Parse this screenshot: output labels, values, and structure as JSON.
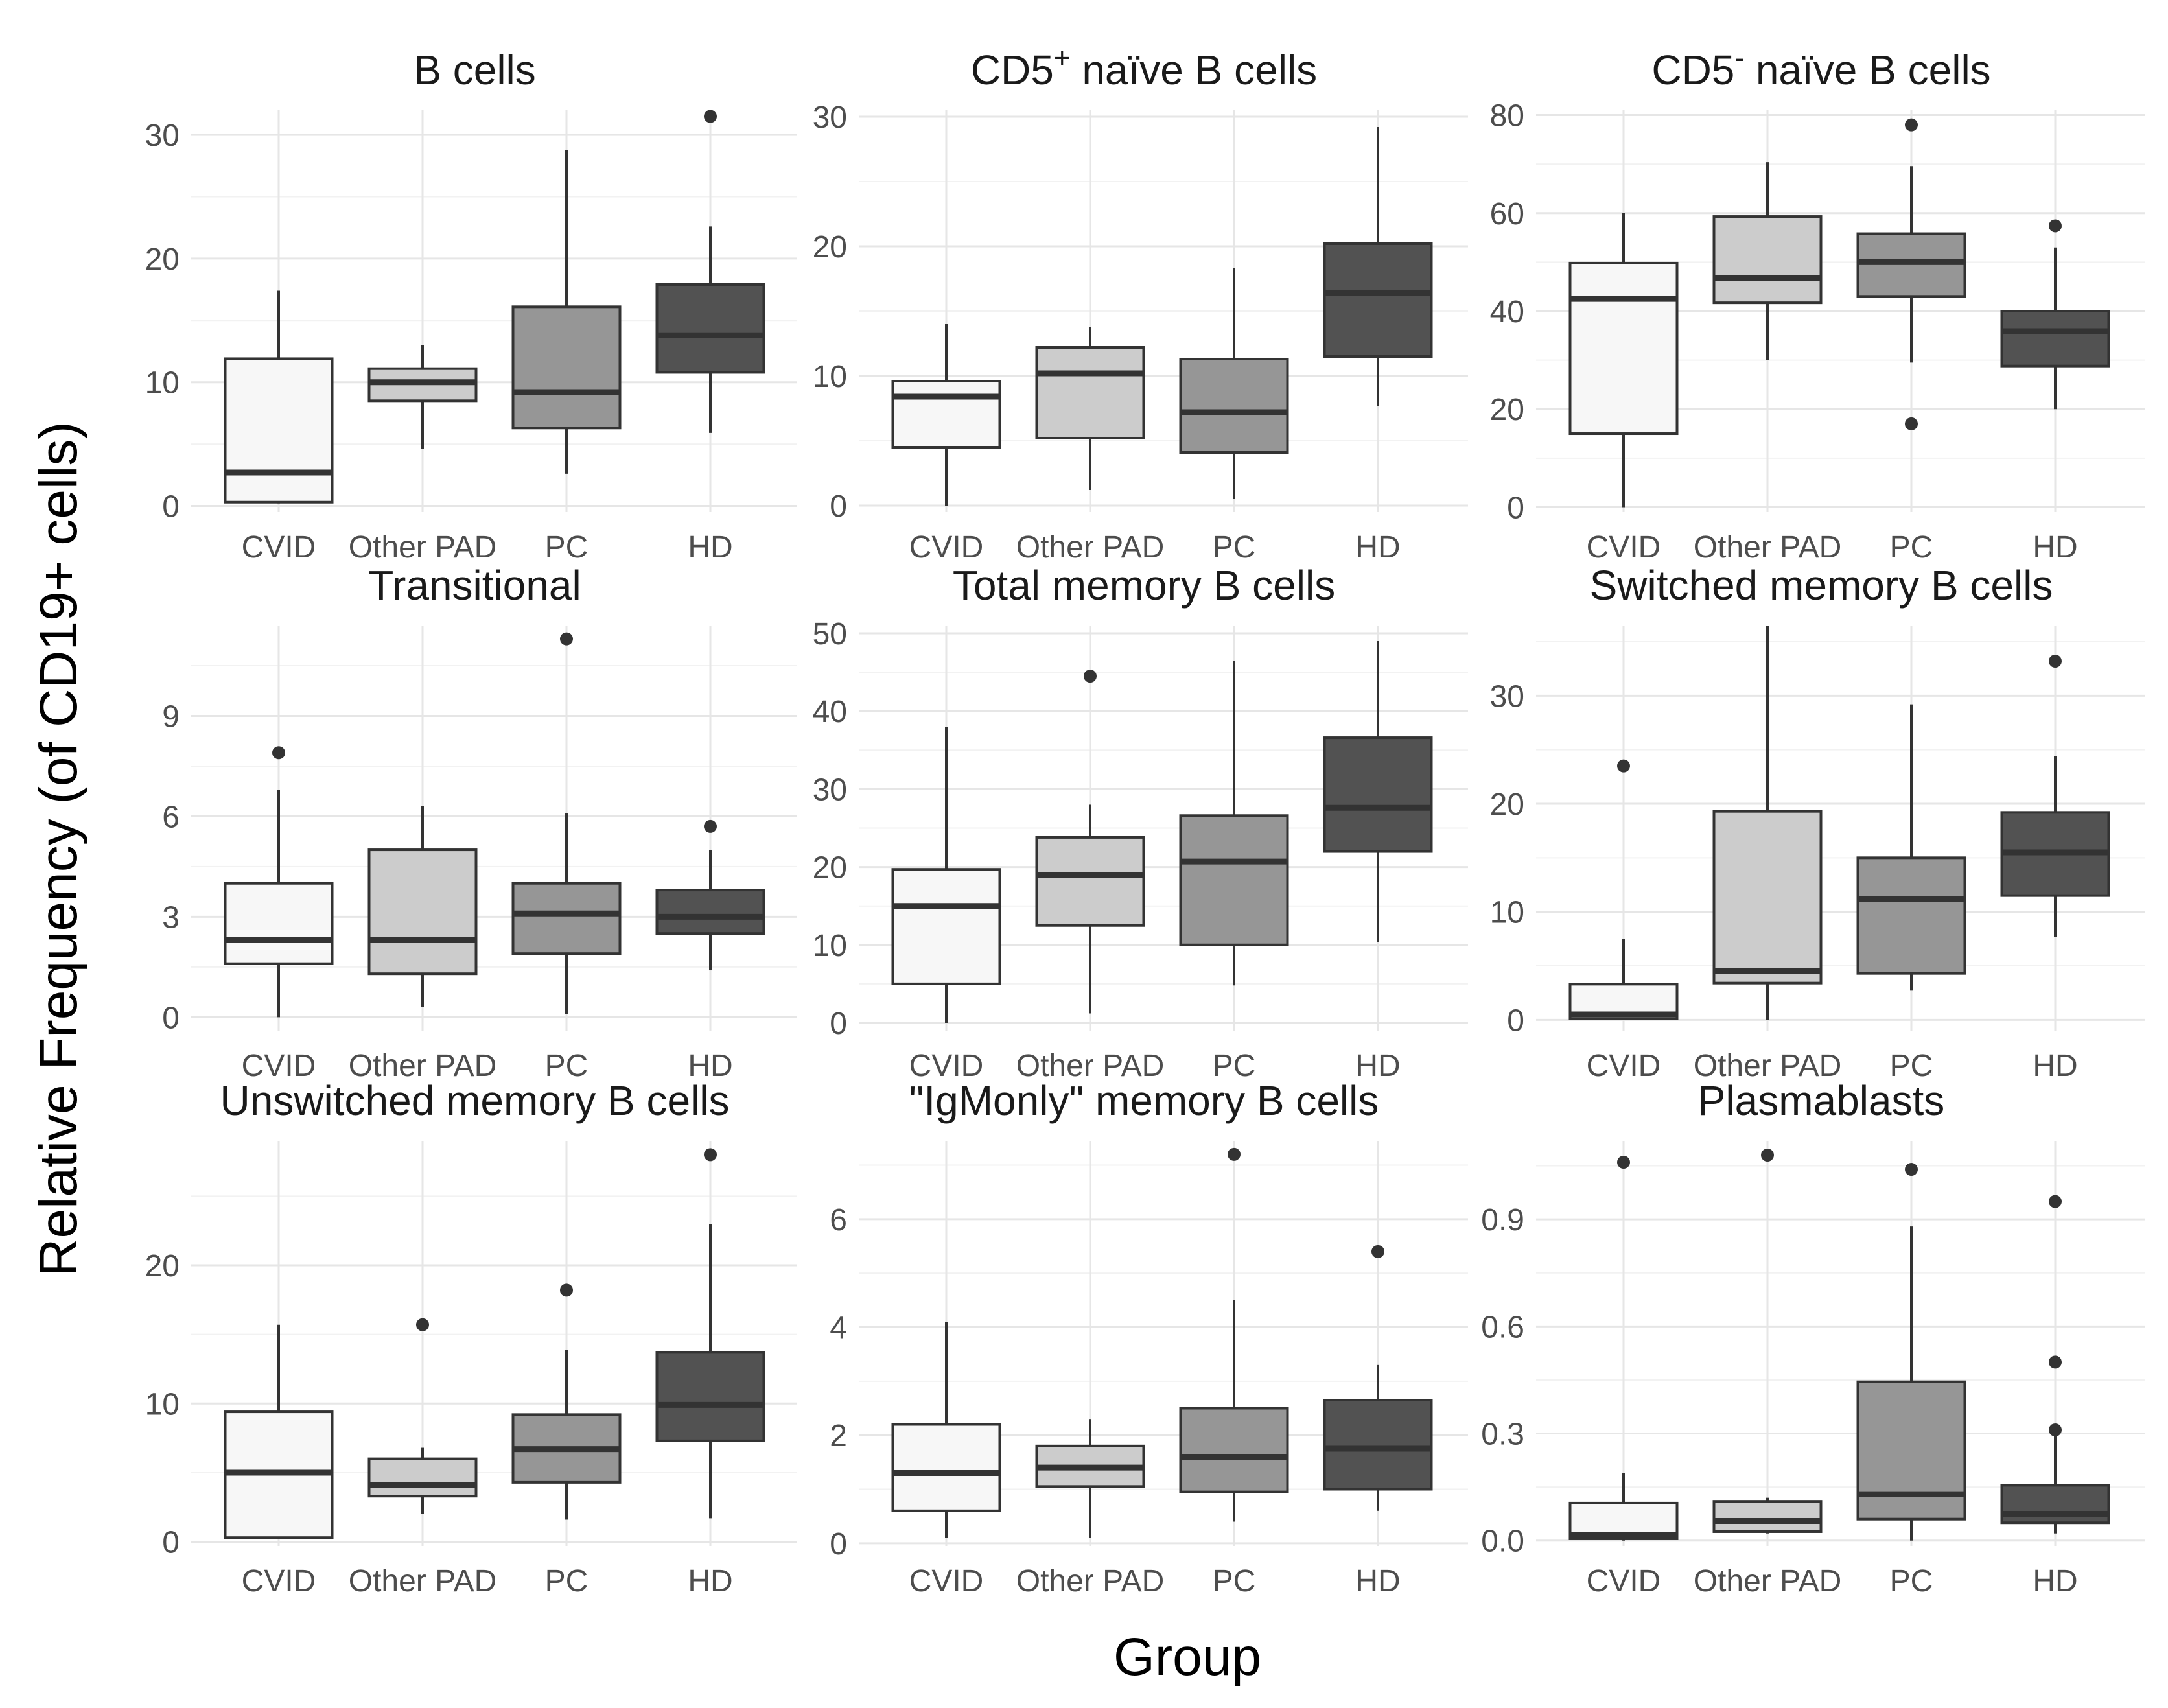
{
  "axis_titles": {
    "y": "Relative Frequency (of CD19+ cells)",
    "x": "Group"
  },
  "chart_data": {
    "type": "boxplot",
    "categories": [
      "CVID",
      "Other PAD",
      "PC",
      "HD"
    ],
    "fill_colors": [
      "#f7f7f7",
      "#cccccc",
      "#969696",
      "#525252"
    ],
    "panels": [
      {
        "title": "B cells",
        "ylim": [
          -0.5,
          32
        ],
        "yticks": [
          0,
          10,
          20,
          30
        ],
        "tick_labels": [
          "0",
          "10",
          "20",
          "30"
        ],
        "boxes": [
          {
            "min": 0.2,
            "q1": 0.3,
            "median": 2.7,
            "q3": 11.9,
            "max": 17.4,
            "outliers": []
          },
          {
            "min": 4.6,
            "q1": 8.5,
            "median": 10.0,
            "q3": 11.1,
            "max": 13.0,
            "outliers": []
          },
          {
            "min": 2.6,
            "q1": 6.3,
            "median": 9.2,
            "q3": 16.1,
            "max": 28.8,
            "outliers": []
          },
          {
            "min": 5.9,
            "q1": 10.8,
            "median": 13.8,
            "q3": 17.9,
            "max": 22.6,
            "outliers": [
              31.5
            ]
          }
        ]
      },
      {
        "title": "CD5+ naïve B cells",
        "title_parts": {
          "main": "CD5",
          "sup": "+",
          "rest": " naïve B cells"
        },
        "ylim": [
          -0.5,
          30.5
        ],
        "yticks": [
          0,
          10,
          20,
          30
        ],
        "tick_labels": [
          "0",
          "10",
          "20",
          "30"
        ],
        "boxes": [
          {
            "min": 0.0,
            "q1": 4.5,
            "median": 8.4,
            "q3": 9.6,
            "max": 14.0,
            "outliers": []
          },
          {
            "min": 1.2,
            "q1": 5.2,
            "median": 10.2,
            "q3": 12.2,
            "max": 13.8,
            "outliers": []
          },
          {
            "min": 0.5,
            "q1": 4.1,
            "median": 7.2,
            "q3": 11.3,
            "max": 18.3,
            "outliers": []
          },
          {
            "min": 7.7,
            "q1": 11.5,
            "median": 16.4,
            "q3": 20.2,
            "max": 29.2,
            "outliers": []
          }
        ]
      },
      {
        "title": "CD5- naïve B cells",
        "title_parts": {
          "main": "CD5",
          "sup": "-",
          "rest": " naïve B cells"
        },
        "ylim": [
          -1,
          81
        ],
        "yticks": [
          0,
          20,
          40,
          60,
          80
        ],
        "tick_labels": [
          "0",
          "20",
          "40",
          "60",
          "80"
        ],
        "boxes": [
          {
            "min": 0.0,
            "q1": 15.0,
            "median": 42.5,
            "q3": 49.8,
            "max": 60.0,
            "outliers": []
          },
          {
            "min": 30.0,
            "q1": 41.7,
            "median": 46.7,
            "q3": 59.3,
            "max": 70.4,
            "outliers": []
          },
          {
            "min": 29.5,
            "q1": 43.0,
            "median": 50.0,
            "q3": 55.8,
            "max": 69.6,
            "outliers": [
              78.0,
              17.0
            ]
          },
          {
            "min": 20.0,
            "q1": 28.8,
            "median": 35.9,
            "q3": 40.0,
            "max": 53.0,
            "outliers": [
              57.4
            ]
          }
        ]
      },
      {
        "title": "Transitional",
        "ylim": [
          -0.4,
          11.7
        ],
        "yticks": [
          0,
          3,
          6,
          9
        ],
        "tick_labels": [
          "0",
          "3",
          "6",
          "9"
        ],
        "boxes": [
          {
            "min": 0.0,
            "q1": 1.6,
            "median": 2.3,
            "q3": 4.0,
            "max": 6.8,
            "outliers": [
              7.9
            ]
          },
          {
            "min": 0.3,
            "q1": 1.3,
            "median": 2.3,
            "q3": 5.0,
            "max": 6.3,
            "outliers": []
          },
          {
            "min": 0.1,
            "q1": 1.9,
            "median": 3.1,
            "q3": 4.0,
            "max": 6.1,
            "outliers": [
              11.3
            ]
          },
          {
            "min": 1.4,
            "q1": 2.5,
            "median": 3.0,
            "q3": 3.8,
            "max": 5.0,
            "outliers": [
              5.7
            ]
          }
        ]
      },
      {
        "title": "Total memory B cells",
        "ylim": [
          -1,
          51
        ],
        "yticks": [
          0,
          10,
          20,
          30,
          40,
          50
        ],
        "tick_labels": [
          "0",
          "10",
          "20",
          "30",
          "40",
          "50"
        ],
        "boxes": [
          {
            "min": 0.0,
            "q1": 5.0,
            "median": 15.0,
            "q3": 19.7,
            "max": 38.0,
            "outliers": []
          },
          {
            "min": 1.2,
            "q1": 12.5,
            "median": 19.0,
            "q3": 23.8,
            "max": 28.0,
            "outliers": [
              44.5
            ]
          },
          {
            "min": 4.8,
            "q1": 10.0,
            "median": 20.7,
            "q3": 26.6,
            "max": 46.5,
            "outliers": []
          },
          {
            "min": 10.4,
            "q1": 22.0,
            "median": 27.6,
            "q3": 36.6,
            "max": 49.0,
            "outliers": []
          }
        ]
      },
      {
        "title": "Switched memory B cells",
        "ylim": [
          -1,
          36.5
        ],
        "yticks": [
          0,
          10,
          20,
          30
        ],
        "tick_labels": [
          "0",
          "10",
          "20",
          "30"
        ],
        "boxes": [
          {
            "min": 0.0,
            "q1": 0.1,
            "median": 0.5,
            "q3": 3.3,
            "max": 7.5,
            "outliers": [
              23.5
            ]
          },
          {
            "min": 0.0,
            "q1": 3.4,
            "median": 4.5,
            "q3": 19.3,
            "max": 36.5,
            "outliers": []
          },
          {
            "min": 2.7,
            "q1": 4.3,
            "median": 11.2,
            "q3": 15.0,
            "max": 29.2,
            "outliers": []
          },
          {
            "min": 7.7,
            "q1": 11.5,
            "median": 15.5,
            "q3": 19.2,
            "max": 24.4,
            "outliers": [
              33.2
            ]
          }
        ]
      },
      {
        "title": "Unswitched memory B cells",
        "ylim": [
          -0.3,
          29
        ],
        "yticks": [
          0,
          10,
          20
        ],
        "tick_labels": [
          "0",
          "10",
          "20"
        ],
        "boxes": [
          {
            "min": 0.2,
            "q1": 0.3,
            "median": 5.0,
            "q3": 9.4,
            "max": 15.7,
            "outliers": []
          },
          {
            "min": 2.0,
            "q1": 3.3,
            "median": 4.1,
            "q3": 6.0,
            "max": 6.8,
            "outliers": [
              15.7
            ]
          },
          {
            "min": 1.6,
            "q1": 4.3,
            "median": 6.7,
            "q3": 9.2,
            "max": 13.9,
            "outliers": [
              18.2
            ]
          },
          {
            "min": 1.7,
            "q1": 7.3,
            "median": 9.9,
            "q3": 13.7,
            "max": 23.0,
            "outliers": [
              28.0
            ]
          }
        ]
      },
      {
        "title": "\"IgMonly\" memory B cells",
        "ylim": [
          -0.05,
          7.45
        ],
        "yticks": [
          0,
          2,
          4,
          6
        ],
        "tick_labels": [
          "0",
          "2",
          "4",
          "6"
        ],
        "boxes": [
          {
            "min": 0.1,
            "q1": 0.6,
            "median": 1.3,
            "q3": 2.2,
            "max": 4.1,
            "outliers": []
          },
          {
            "min": 0.1,
            "q1": 1.05,
            "median": 1.4,
            "q3": 1.8,
            "max": 2.3,
            "outliers": []
          },
          {
            "min": 0.4,
            "q1": 0.95,
            "median": 1.6,
            "q3": 2.5,
            "max": 4.5,
            "outliers": [
              7.2
            ]
          },
          {
            "min": 0.6,
            "q1": 1.0,
            "median": 1.75,
            "q3": 2.65,
            "max": 3.3,
            "outliers": [
              5.4
            ]
          }
        ]
      },
      {
        "title": "Plasmablasts",
        "ylim": [
          -0.015,
          1.12
        ],
        "yticks": [
          0.0,
          0.3,
          0.6,
          0.9
        ],
        "tick_labels": [
          "0.0",
          "0.3",
          "0.6",
          "0.9"
        ],
        "boxes": [
          {
            "min": 0.0,
            "q1": 0.005,
            "median": 0.015,
            "q3": 0.105,
            "max": 0.19,
            "outliers": [
              1.06
            ]
          },
          {
            "min": 0.02,
            "q1": 0.025,
            "median": 0.055,
            "q3": 0.11,
            "max": 0.12,
            "outliers": [
              1.08
            ]
          },
          {
            "min": 0.0,
            "q1": 0.06,
            "median": 0.13,
            "q3": 0.445,
            "max": 0.88,
            "outliers": [
              1.04
            ]
          },
          {
            "min": 0.02,
            "q1": 0.05,
            "median": 0.075,
            "q3": 0.155,
            "max": 0.3,
            "outliers": [
              0.95,
              0.5,
              0.31
            ]
          }
        ]
      }
    ]
  }
}
